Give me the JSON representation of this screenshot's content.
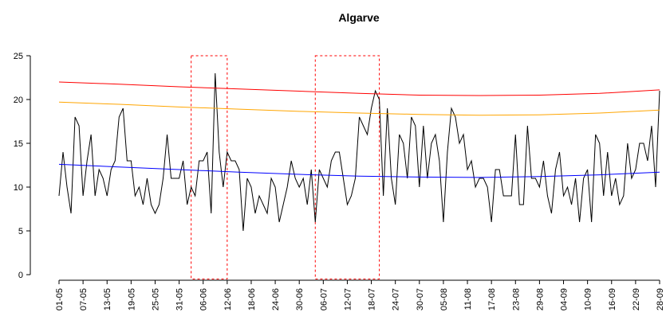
{
  "chart_data": {
    "type": "line",
    "title": "Algarve",
    "xlim": [
      0,
      150
    ],
    "xticks": [
      {
        "value": 0,
        "label": "01-05"
      },
      {
        "value": 6,
        "label": "07-05"
      },
      {
        "value": 12,
        "label": "13-05"
      },
      {
        "value": 18,
        "label": "19-05"
      },
      {
        "value": 24,
        "label": "25-05"
      },
      {
        "value": 30,
        "label": "31-05"
      },
      {
        "value": 36,
        "label": "06-06"
      },
      {
        "value": 42,
        "label": "12-06"
      },
      {
        "value": 48,
        "label": "18-06"
      },
      {
        "value": 54,
        "label": "24-06"
      },
      {
        "value": 60,
        "label": "30-06"
      },
      {
        "value": 66,
        "label": "06-07"
      },
      {
        "value": 72,
        "label": "12-07"
      },
      {
        "value": 78,
        "label": "18-07"
      },
      {
        "value": 84,
        "label": "24-07"
      },
      {
        "value": 90,
        "label": "30-07"
      },
      {
        "value": 96,
        "label": "05-08"
      },
      {
        "value": 102,
        "label": "11-08"
      },
      {
        "value": 108,
        "label": "17-08"
      },
      {
        "value": 114,
        "label": "23-08"
      },
      {
        "value": 120,
        "label": "29-08"
      },
      {
        "value": 126,
        "label": "04-09"
      },
      {
        "value": 132,
        "label": "10-09"
      },
      {
        "value": 138,
        "label": "16-09"
      },
      {
        "value": 144,
        "label": "22-09"
      },
      {
        "value": 150,
        "label": "28-09"
      }
    ],
    "ylim": [
      0,
      25
    ],
    "yticks": [
      0,
      5,
      10,
      15,
      20,
      25
    ],
    "series": [
      {
        "color": "#000000",
        "values": [
          9,
          14,
          10,
          7,
          18,
          17,
          9,
          13,
          16,
          9,
          12,
          11,
          9,
          12,
          13,
          18,
          19,
          13,
          13,
          9,
          10,
          8,
          11,
          8,
          7,
          8,
          11,
          16,
          11,
          11,
          11,
          13,
          8,
          10,
          9,
          13,
          13,
          14,
          7,
          23,
          14,
          10,
          14,
          13,
          13,
          12,
          5,
          11,
          10,
          7,
          9,
          8,
          7,
          11,
          10,
          6,
          8,
          10,
          13,
          11,
          10,
          11,
          8,
          12,
          6,
          12,
          11,
          10,
          13,
          14,
          14,
          11,
          8,
          9,
          11,
          18,
          17,
          16,
          19,
          21,
          20,
          9,
          19,
          11,
          8,
          16,
          15,
          11,
          18,
          17,
          10,
          17,
          11,
          15,
          16,
          13,
          6,
          14,
          19,
          18,
          15,
          16,
          12,
          13,
          10,
          11,
          11,
          10,
          6,
          12,
          12,
          9,
          9,
          9,
          16,
          8,
          8,
          17,
          11,
          11,
          10,
          13,
          9,
          7,
          12,
          14,
          9,
          10,
          8,
          11,
          6,
          11,
          12,
          6,
          16,
          15,
          9,
          14,
          9,
          11,
          8,
          9,
          15,
          11,
          12,
          15,
          15,
          13,
          17,
          10,
          21
        ]
      },
      {
        "color": "#ff0000",
        "x": [
          0,
          15,
          30,
          45,
          60,
          75,
          90,
          105,
          120,
          135,
          150
        ],
        "values": [
          22.0,
          21.75,
          21.45,
          21.2,
          20.95,
          20.7,
          20.5,
          20.45,
          20.5,
          20.7,
          21.1
        ]
      },
      {
        "color": "#ffa500",
        "x": [
          0,
          15,
          30,
          45,
          60,
          75,
          90,
          105,
          120,
          135,
          150
        ],
        "values": [
          19.7,
          19.45,
          19.15,
          18.9,
          18.65,
          18.45,
          18.3,
          18.2,
          18.25,
          18.45,
          18.8
        ]
      },
      {
        "color": "#0000ff",
        "x": [
          0,
          15,
          30,
          45,
          60,
          75,
          90,
          105,
          120,
          135,
          150
        ],
        "values": [
          12.6,
          12.3,
          12.0,
          11.7,
          11.45,
          11.25,
          11.15,
          11.1,
          11.2,
          11.4,
          11.7
        ]
      }
    ],
    "regions": [
      {
        "color": "#ff0000",
        "xlim": [
          33,
          42
        ],
        "ylim": [
          -0.5,
          25
        ]
      },
      {
        "color": "#ff0000",
        "xlim": [
          64,
          80
        ],
        "ylim": [
          -0.5,
          25
        ]
      }
    ]
  }
}
